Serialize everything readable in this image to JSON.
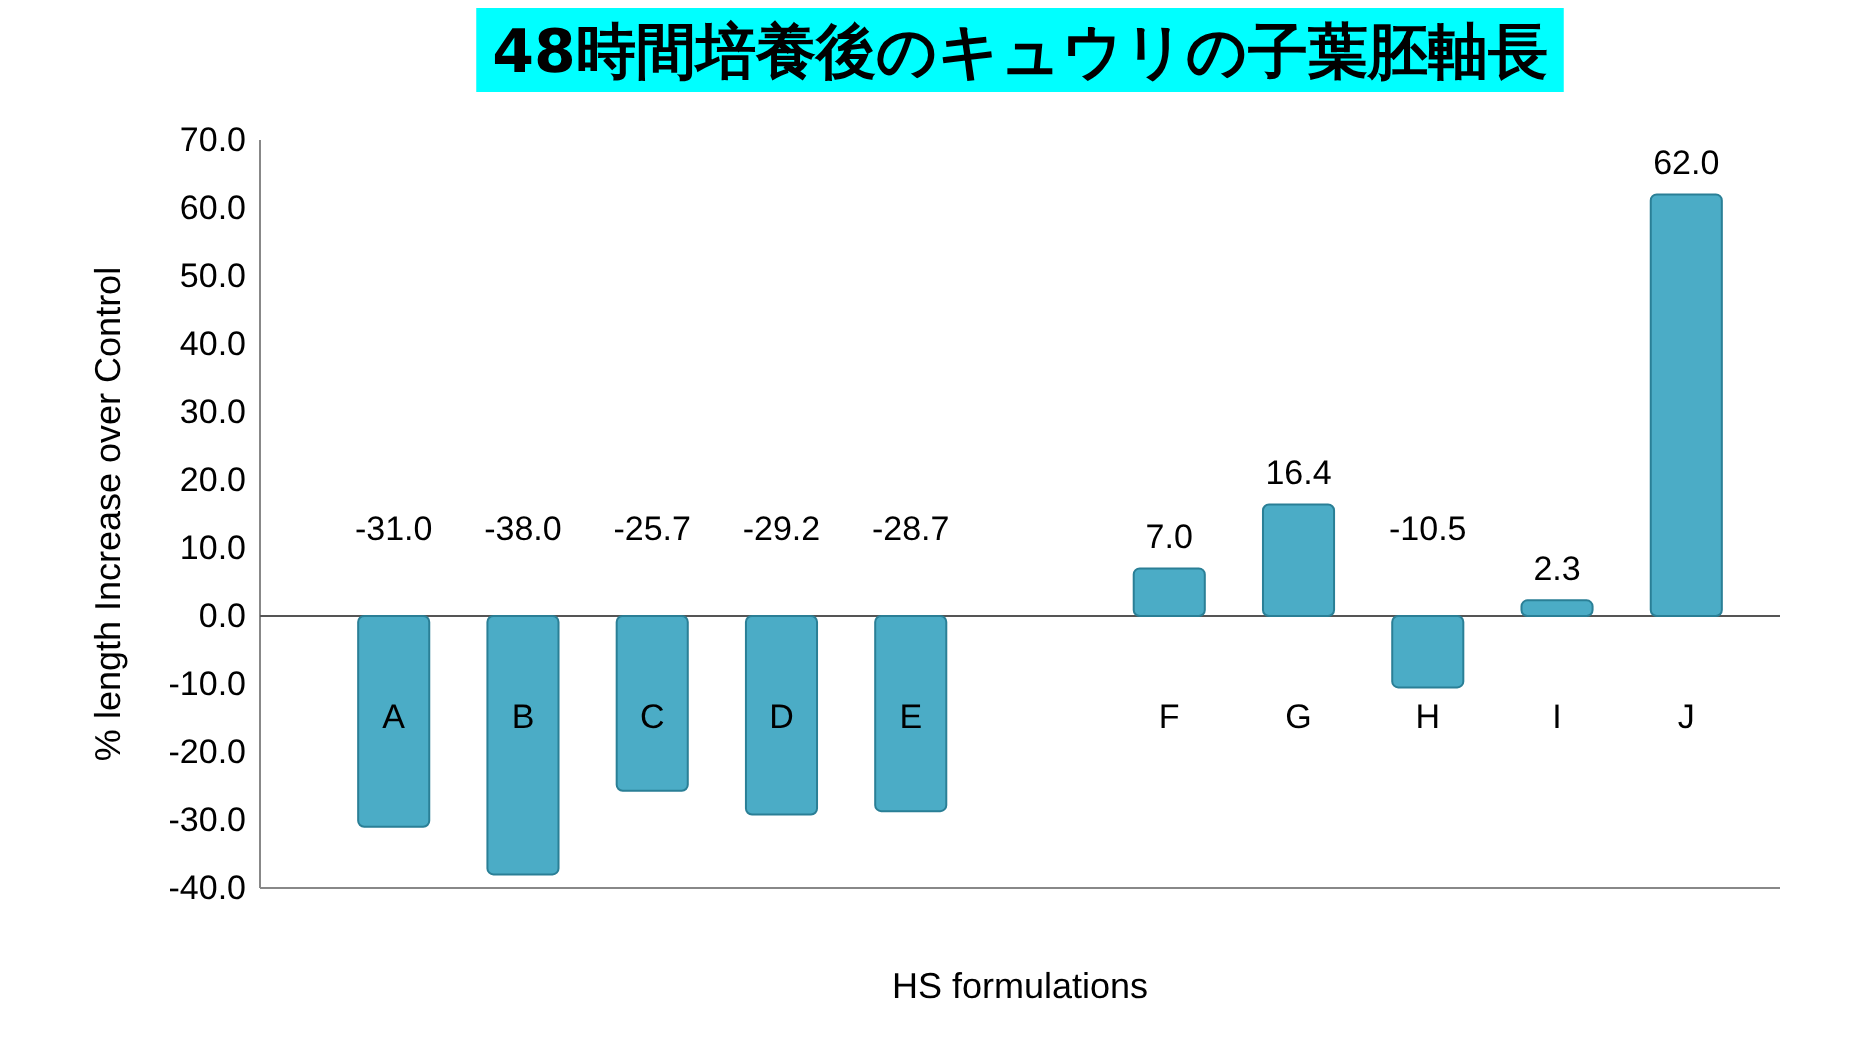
{
  "chart_data": {
    "type": "bar",
    "title": "48時間培養後のキュウリの子葉胚軸長",
    "xlabel": "HS formulations",
    "ylabel": "% length Increase over Control",
    "categories": [
      "A",
      "B",
      "C",
      "D",
      "E",
      null,
      "F",
      "G",
      "H",
      "I",
      "J"
    ],
    "values": [
      -31.0,
      -38.0,
      -25.7,
      -29.2,
      -28.7,
      null,
      7.0,
      16.4,
      -10.5,
      2.3,
      62.0
    ],
    "color": "#4bacc6",
    "ylim": [
      -40,
      70
    ],
    "yticks": [
      {
        "value": -40,
        "label": "-40.0"
      },
      {
        "value": -30,
        "label": "-30.0"
      },
      {
        "value": -20,
        "label": "-20.0"
      },
      {
        "value": -10,
        "label": "-10.0"
      },
      {
        "value": 0,
        "label": "0.0"
      },
      {
        "value": 10,
        "label": "10.0"
      },
      {
        "value": 20,
        "label": "20.0"
      },
      {
        "value": 30,
        "label": "30.0"
      },
      {
        "value": 40,
        "label": "40.0"
      },
      {
        "value": 50,
        "label": "50.0"
      },
      {
        "value": 60,
        "label": "60.0"
      },
      {
        "value": 70,
        "label": "70.0"
      }
    ],
    "value_labels": [
      "-31.0",
      "-38.0",
      "-25.7",
      "-29.2",
      "-28.7",
      null,
      "7.0",
      "16.4",
      "-10.5",
      "2.3",
      "62.0"
    ],
    "grid": false
  }
}
